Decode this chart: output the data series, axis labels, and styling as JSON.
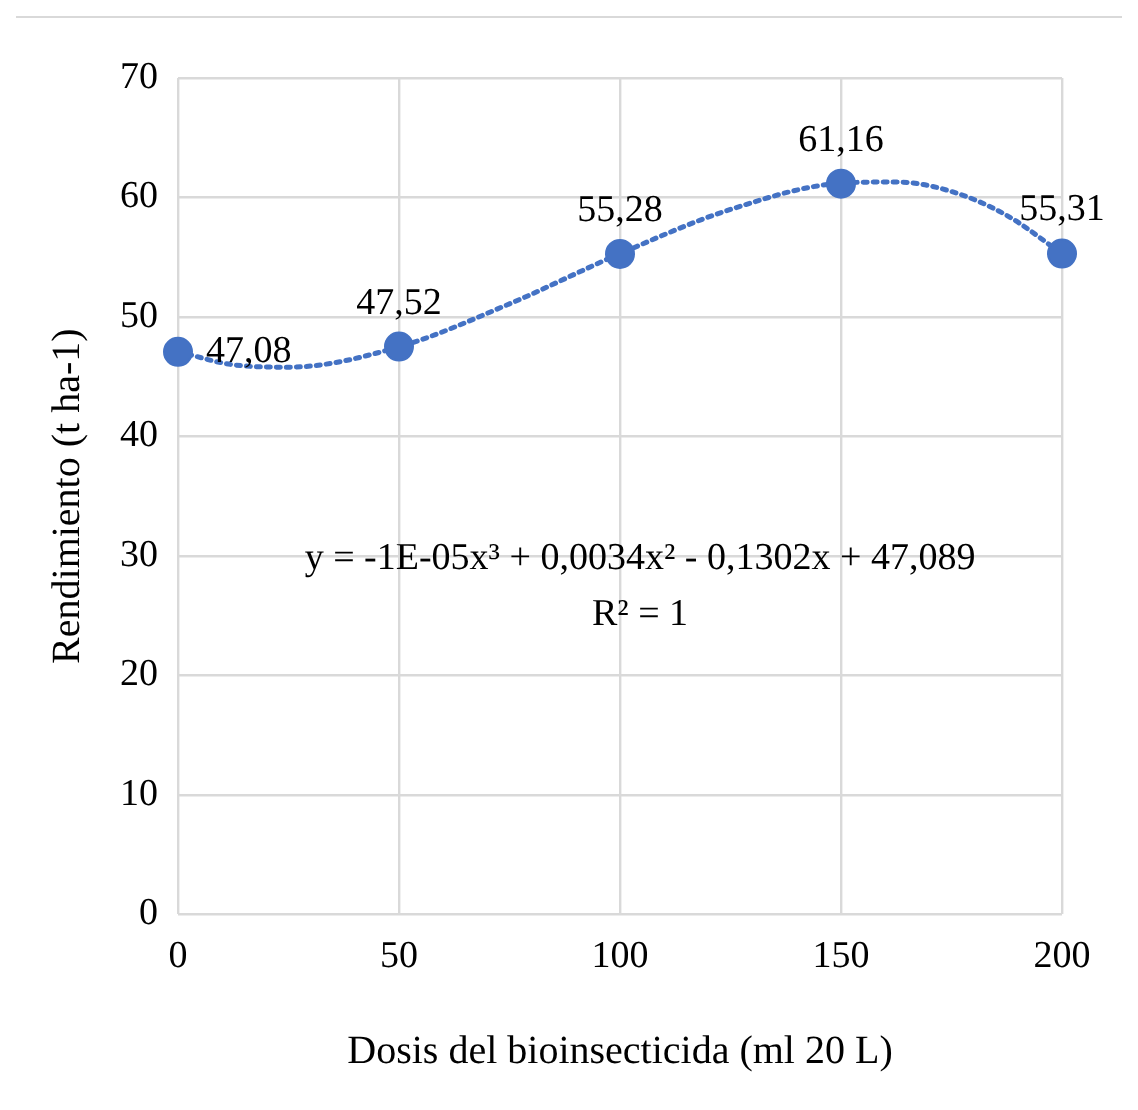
{
  "chart_data": {
    "type": "scatter",
    "xlabel": "Dosis del bioinsecticida (ml 20 L)",
    "ylabel": "Rendimiento (t ha-1)",
    "x": [
      0,
      50,
      100,
      150,
      200
    ],
    "series": [
      {
        "type": "line",
        "color": "#4472c4",
        "line_style": "dotted",
        "marker": "none",
        "x": [
          0,
          12.5,
          25,
          50,
          75,
          100,
          125,
          150,
          162.5,
          175,
          187.5,
          200
        ],
        "values": [
          47.1,
          46.0,
          45.8,
          47.5,
          51.1,
          55.3,
          59.0,
          61.2,
          61.3,
          60.5,
          58.5,
          55.3
        ]
      },
      {
        "type": "scatter",
        "color": "#4472c4",
        "marker": "circle",
        "values": [
          47.08,
          47.52,
          55.28,
          61.16,
          55.31
        ],
        "value_labels": [
          "47,08",
          "47,52",
          "55,28",
          "61,16",
          "55,31"
        ]
      }
    ],
    "xlim": [
      0,
      200
    ],
    "xticks": [
      0,
      50,
      100,
      150,
      200
    ],
    "ylim": [
      0,
      70
    ],
    "yticks": [
      0,
      10,
      20,
      30,
      40,
      50,
      60,
      70
    ],
    "grid": true,
    "legend": false,
    "annotations": [
      "y = -1E-05x³ + 0,0034x² - 0,1302x + 47,089",
      "R² = 1"
    ]
  }
}
